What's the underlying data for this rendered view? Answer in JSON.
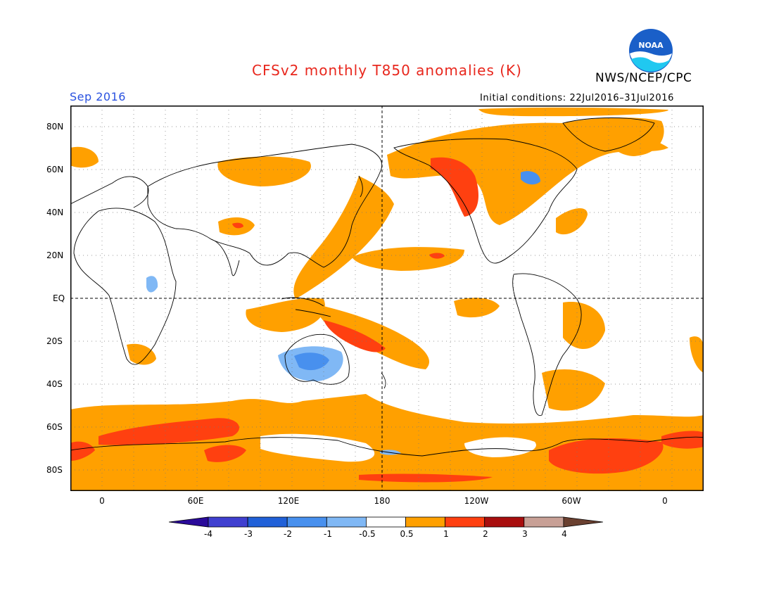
{
  "header": {
    "title": "CFSv2 monthly T850 anomalies (K)",
    "agency": "NWS/NCEP/CPC",
    "logo_text": "NOAA",
    "valid_month": "Sep 2016",
    "initial_conditions": "Initial conditions: 22Jul2016–31Jul2016"
  },
  "colors": {
    "title": "#e8271d",
    "valid_month": "#2a52e0",
    "logo_blue": "#1a5fc8",
    "logo_cyan": "#20c8f0"
  },
  "map": {
    "lat_labels": [
      "80N",
      "60N",
      "40N",
      "20N",
      "EQ",
      "20S",
      "40S",
      "60S",
      "80S"
    ],
    "lon_labels": [
      "0",
      "60E",
      "120E",
      "180",
      "120W",
      "60W",
      "0"
    ]
  },
  "legend": {
    "labels": [
      "-4",
      "-3",
      "-2",
      "-1",
      "-0.5",
      "0.5",
      "1",
      "2",
      "3",
      "4"
    ],
    "colors": [
      "#2a0a9a",
      "#4040d0",
      "#2060d8",
      "#4890ee",
      "#80b8f5",
      "#ffffff",
      "#ffa000",
      "#ff4010",
      "#a80e0e",
      "#c8a096",
      "#6a4030"
    ]
  }
}
